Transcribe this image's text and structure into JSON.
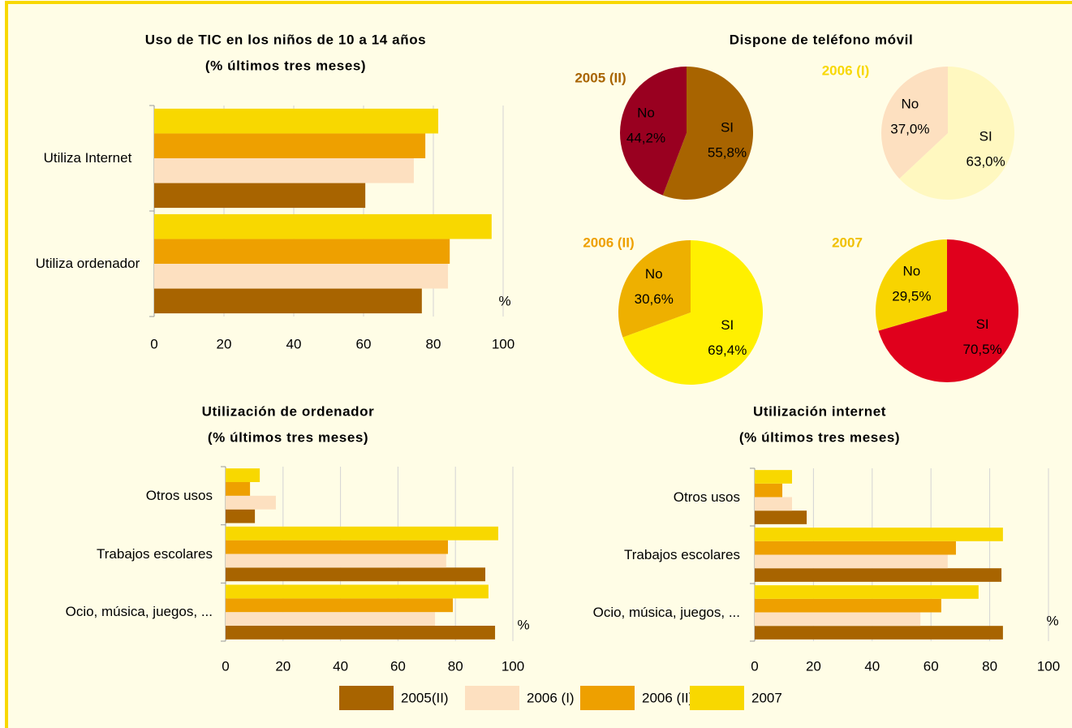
{
  "chart_data": [
    {
      "type": "bar",
      "orientation": "horizontal",
      "title": "Uso de TIC en los niños de 10 a 14 años",
      "subtitle": "(% últimos tres meses)",
      "categories": [
        "Utiliza Internet",
        "Utiliza ordenador"
      ],
      "series": [
        {
          "name": "2005(II)",
          "color": "#a86400",
          "values": [
            60.5,
            76.7
          ]
        },
        {
          "name": "2006 (I)",
          "color": "#fde0c0",
          "values": [
            74.4,
            84.2
          ]
        },
        {
          "name": "2006 (II)",
          "color": "#eea000",
          "values": [
            77.7,
            84.7
          ]
        },
        {
          "name": "2007",
          "color": "#f8d800",
          "values": [
            81.4,
            96.7
          ]
        }
      ],
      "xlim": [
        0,
        100
      ],
      "xticks": [
        0,
        20,
        40,
        60,
        80,
        100
      ],
      "xlabel": "%",
      "grid": true
    },
    {
      "type": "pie",
      "title": "Dispone de teléfono móvil",
      "pies": [
        {
          "label": "2005 (II)",
          "label_color": "#a86400",
          "categories": [
            "SI",
            "No"
          ],
          "values": [
            55.8,
            44.2
          ],
          "value_labels": [
            "55,8%",
            "44,2%"
          ],
          "colors": [
            "#a86400",
            "#990020"
          ]
        },
        {
          "label": "2006 (I)",
          "label_color": "#f8d800",
          "categories": [
            "SI",
            "No"
          ],
          "values": [
            63.0,
            37.0
          ],
          "value_labels": [
            "63,0%",
            "37,0%"
          ],
          "colors": [
            "#fff8c0",
            "#fde0c0"
          ]
        },
        {
          "label": "2006 (II)",
          "label_color": "#eea000",
          "categories": [
            "SI",
            "No"
          ],
          "values": [
            69.4,
            30.6
          ],
          "value_labels": [
            "69,4%",
            "30,6%"
          ],
          "colors": [
            "#fff000",
            "#eeb000"
          ]
        },
        {
          "label": "2007",
          "label_color": "#f0c000",
          "categories": [
            "SI",
            "No"
          ],
          "values": [
            70.5,
            29.5
          ],
          "value_labels": [
            "70,5%",
            "29,5%"
          ],
          "colors": [
            "#e0001c",
            "#f8d400"
          ]
        }
      ]
    },
    {
      "type": "bar",
      "orientation": "horizontal",
      "title": "Utilización de ordenador",
      "subtitle": "(% últimos tres meses)",
      "categories": [
        "Otros usos",
        "Trabajos escolares",
        "Ocio, música, juegos, ..."
      ],
      "series": [
        {
          "name": "2005(II)",
          "color": "#a86400",
          "values": [
            10.2,
            90.4,
            93.8
          ]
        },
        {
          "name": "2006 (I)",
          "color": "#fde0c0",
          "values": [
            17.5,
            76.8,
            72.9
          ]
        },
        {
          "name": "2006 (II)",
          "color": "#eea000",
          "values": [
            8.5,
            77.4,
            79.1
          ]
        },
        {
          "name": "2007",
          "color": "#f8d800",
          "values": [
            11.9,
            94.9,
            91.5
          ]
        }
      ],
      "xlim": [
        0,
        100
      ],
      "xticks": [
        0,
        20,
        40,
        60,
        80,
        100
      ],
      "xlabel": "%",
      "grid": true
    },
    {
      "type": "bar",
      "orientation": "horizontal",
      "title": "Utilización internet",
      "subtitle": "(% últimos tres meses)",
      "categories": [
        "Otros usos",
        "Trabajos escolares",
        "Ocio, música, juegos, ..."
      ],
      "series": [
        {
          "name": "2005(II)",
          "color": "#a86400",
          "values": [
            17.7,
            84.0,
            84.5
          ]
        },
        {
          "name": "2006 (I)",
          "color": "#fde0c0",
          "values": [
            12.7,
            65.7,
            56.4
          ]
        },
        {
          "name": "2006 (II)",
          "color": "#eea000",
          "values": [
            9.4,
            68.5,
            63.5
          ]
        },
        {
          "name": "2007",
          "color": "#f8d800",
          "values": [
            12.7,
            84.5,
            76.2
          ]
        }
      ],
      "xlim": [
        0,
        100
      ],
      "xticks": [
        0,
        20,
        40,
        60,
        80,
        100
      ],
      "xlabel": "%",
      "grid": true
    }
  ]
}
